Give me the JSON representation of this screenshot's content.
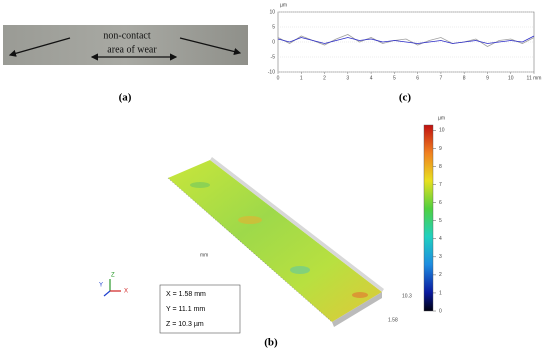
{
  "panel_a": {
    "label": "(a)",
    "annotations": [
      "non-contact",
      "area of wear"
    ]
  },
  "panel_b": {
    "label": "(b)",
    "info": [
      "X = 1.58 mm",
      "Y = 11.1 mm",
      "Z = 10.3 µm"
    ],
    "axes": [
      "X",
      "Y",
      "Z"
    ],
    "edge_labels": [
      "10.3",
      "1.58",
      "mm"
    ],
    "colorbar": {
      "unit": "µm",
      "range": [
        0,
        10.3
      ],
      "ticks": [
        0,
        1,
        2,
        3,
        4,
        5,
        6,
        7,
        8,
        9,
        10
      ]
    }
  },
  "panel_c": {
    "label": "(c)"
  },
  "chart_data": {
    "type": "line",
    "y_unit": "µm",
    "x": [
      0,
      0.5,
      1,
      1.5,
      2,
      2.5,
      3,
      3.5,
      4,
      4.5,
      5,
      5.5,
      6,
      6.5,
      7,
      7.5,
      8,
      8.5,
      9,
      9.5,
      10,
      10.5,
      11
    ],
    "series": [
      {
        "color": "#a0a0a0",
        "values": [
          1.5,
          -0.5,
          2,
          0.5,
          -1,
          1,
          2.5,
          0,
          1.5,
          -0.5,
          0.5,
          1,
          -1,
          0.5,
          1.5,
          -0.5,
          0,
          1,
          -1.5,
          0.5,
          1,
          -0.5,
          1.5
        ]
      },
      {
        "color": "#2b2bc8",
        "values": [
          1,
          0,
          1.5,
          0.5,
          -0.5,
          0.5,
          1.5,
          0.5,
          1,
          0,
          0.5,
          0,
          -0.5,
          0,
          0.5,
          -0.5,
          0,
          0.5,
          -0.5,
          0,
          0.5,
          0,
          2
        ]
      }
    ],
    "xlim": [
      0,
      11
    ],
    "ylim": [
      -10,
      10
    ],
    "xticks": [
      0,
      1,
      2,
      3,
      4,
      5,
      6,
      7,
      8,
      9,
      10,
      {
        "value": 11,
        "label": "11 mm"
      }
    ],
    "yticks": [
      -10,
      -5,
      0,
      5,
      10
    ],
    "grid": true
  }
}
